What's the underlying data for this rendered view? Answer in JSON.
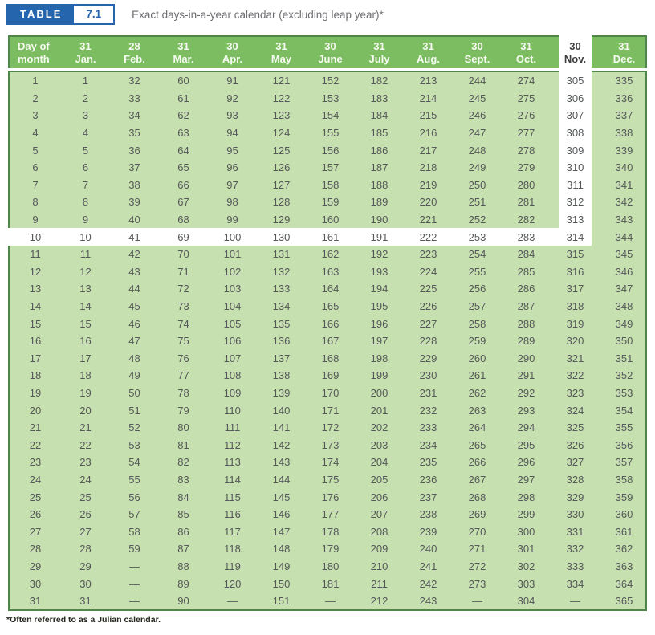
{
  "header": {
    "table_label": "TABLE",
    "table_number": "7.1",
    "caption": "Exact days-in-a-year calendar (excluding leap year)*"
  },
  "table": {
    "day_of_month_header": [
      "Day of",
      "month"
    ],
    "months": [
      {
        "days": "31",
        "name": "Jan."
      },
      {
        "days": "28",
        "name": "Feb."
      },
      {
        "days": "31",
        "name": "Mar."
      },
      {
        "days": "30",
        "name": "Apr."
      },
      {
        "days": "31",
        "name": "May"
      },
      {
        "days": "30",
        "name": "June"
      },
      {
        "days": "31",
        "name": "July"
      },
      {
        "days": "31",
        "name": "Aug."
      },
      {
        "days": "30",
        "name": "Sept."
      },
      {
        "days": "31",
        "name": "Oct."
      },
      {
        "days": "30",
        "name": "Nov."
      },
      {
        "days": "31",
        "name": "Dec."
      }
    ],
    "missing_day_marker": "—",
    "rows": [
      {
        "day": "1",
        "values": [
          "1",
          "32",
          "60",
          "91",
          "121",
          "152",
          "182",
          "213",
          "244",
          "274",
          "305",
          "335"
        ]
      },
      {
        "day": "2",
        "values": [
          "2",
          "33",
          "61",
          "92",
          "122",
          "153",
          "183",
          "214",
          "245",
          "275",
          "306",
          "336"
        ]
      },
      {
        "day": "3",
        "values": [
          "3",
          "34",
          "62",
          "93",
          "123",
          "154",
          "184",
          "215",
          "246",
          "276",
          "307",
          "337"
        ]
      },
      {
        "day": "4",
        "values": [
          "4",
          "35",
          "63",
          "94",
          "124",
          "155",
          "185",
          "216",
          "247",
          "277",
          "308",
          "338"
        ]
      },
      {
        "day": "5",
        "values": [
          "5",
          "36",
          "64",
          "95",
          "125",
          "156",
          "186",
          "217",
          "248",
          "278",
          "309",
          "339"
        ]
      },
      {
        "day": "6",
        "values": [
          "6",
          "37",
          "65",
          "96",
          "126",
          "157",
          "187",
          "218",
          "249",
          "279",
          "310",
          "340"
        ]
      },
      {
        "day": "7",
        "values": [
          "7",
          "38",
          "66",
          "97",
          "127",
          "158",
          "188",
          "219",
          "250",
          "280",
          "311",
          "341"
        ]
      },
      {
        "day": "8",
        "values": [
          "8",
          "39",
          "67",
          "98",
          "128",
          "159",
          "189",
          "220",
          "251",
          "281",
          "312",
          "342"
        ]
      },
      {
        "day": "9",
        "values": [
          "9",
          "40",
          "68",
          "99",
          "129",
          "160",
          "190",
          "221",
          "252",
          "282",
          "313",
          "343"
        ]
      },
      {
        "day": "10",
        "values": [
          "10",
          "41",
          "69",
          "100",
          "130",
          "161",
          "191",
          "222",
          "253",
          "283",
          "314",
          "344"
        ]
      },
      {
        "day": "11",
        "values": [
          "11",
          "42",
          "70",
          "101",
          "131",
          "162",
          "192",
          "223",
          "254",
          "284",
          "315",
          "345"
        ]
      },
      {
        "day": "12",
        "values": [
          "12",
          "43",
          "71",
          "102",
          "132",
          "163",
          "193",
          "224",
          "255",
          "285",
          "316",
          "346"
        ]
      },
      {
        "day": "13",
        "values": [
          "13",
          "44",
          "72",
          "103",
          "133",
          "164",
          "194",
          "225",
          "256",
          "286",
          "317",
          "347"
        ]
      },
      {
        "day": "14",
        "values": [
          "14",
          "45",
          "73",
          "104",
          "134",
          "165",
          "195",
          "226",
          "257",
          "287",
          "318",
          "348"
        ]
      },
      {
        "day": "15",
        "values": [
          "15",
          "46",
          "74",
          "105",
          "135",
          "166",
          "196",
          "227",
          "258",
          "288",
          "319",
          "349"
        ]
      },
      {
        "day": "16",
        "values": [
          "16",
          "47",
          "75",
          "106",
          "136",
          "167",
          "197",
          "228",
          "259",
          "289",
          "320",
          "350"
        ]
      },
      {
        "day": "17",
        "values": [
          "17",
          "48",
          "76",
          "107",
          "137",
          "168",
          "198",
          "229",
          "260",
          "290",
          "321",
          "351"
        ]
      },
      {
        "day": "18",
        "values": [
          "18",
          "49",
          "77",
          "108",
          "138",
          "169",
          "199",
          "230",
          "261",
          "291",
          "322",
          "352"
        ]
      },
      {
        "day": "19",
        "values": [
          "19",
          "50",
          "78",
          "109",
          "139",
          "170",
          "200",
          "231",
          "262",
          "292",
          "323",
          "353"
        ]
      },
      {
        "day": "20",
        "values": [
          "20",
          "51",
          "79",
          "110",
          "140",
          "171",
          "201",
          "232",
          "263",
          "293",
          "324",
          "354"
        ]
      },
      {
        "day": "21",
        "values": [
          "21",
          "52",
          "80",
          "111",
          "141",
          "172",
          "202",
          "233",
          "264",
          "294",
          "325",
          "355"
        ]
      },
      {
        "day": "22",
        "values": [
          "22",
          "53",
          "81",
          "112",
          "142",
          "173",
          "203",
          "234",
          "265",
          "295",
          "326",
          "356"
        ]
      },
      {
        "day": "23",
        "values": [
          "23",
          "54",
          "82",
          "113",
          "143",
          "174",
          "204",
          "235",
          "266",
          "296",
          "327",
          "357"
        ]
      },
      {
        "day": "24",
        "values": [
          "24",
          "55",
          "83",
          "114",
          "144",
          "175",
          "205",
          "236",
          "267",
          "297",
          "328",
          "358"
        ]
      },
      {
        "day": "25",
        "values": [
          "25",
          "56",
          "84",
          "115",
          "145",
          "176",
          "206",
          "237",
          "268",
          "298",
          "329",
          "359"
        ]
      },
      {
        "day": "26",
        "values": [
          "26",
          "57",
          "85",
          "116",
          "146",
          "177",
          "207",
          "238",
          "269",
          "299",
          "330",
          "360"
        ]
      },
      {
        "day": "27",
        "values": [
          "27",
          "58",
          "86",
          "117",
          "147",
          "178",
          "208",
          "239",
          "270",
          "300",
          "331",
          "361"
        ]
      },
      {
        "day": "28",
        "values": [
          "28",
          "59",
          "87",
          "118",
          "148",
          "179",
          "209",
          "240",
          "271",
          "301",
          "332",
          "362"
        ]
      },
      {
        "day": "29",
        "values": [
          "29",
          "—",
          "88",
          "119",
          "149",
          "180",
          "210",
          "241",
          "272",
          "302",
          "333",
          "363"
        ]
      },
      {
        "day": "30",
        "values": [
          "30",
          "—",
          "89",
          "120",
          "150",
          "181",
          "211",
          "242",
          "273",
          "303",
          "334",
          "364"
        ]
      },
      {
        "day": "31",
        "values": [
          "31",
          "—",
          "90",
          "—",
          "151",
          "—",
          "212",
          "243",
          "—",
          "304",
          "—",
          "365"
        ]
      }
    ],
    "highlight": {
      "month": "Nov.",
      "month_index": 10,
      "day": "10",
      "row_index": 9,
      "intersection_value": "314",
      "highlight_color": "#ffffff"
    }
  },
  "footnote": "*Often referred to as a Julian calendar.",
  "colors": {
    "accent_blue": "#2465ad",
    "header_green": "#7cbd62",
    "body_green": "#c7e0af",
    "border_green": "#4e8747",
    "body_text": "#55585a",
    "caption_gray": "#6d6e71"
  }
}
